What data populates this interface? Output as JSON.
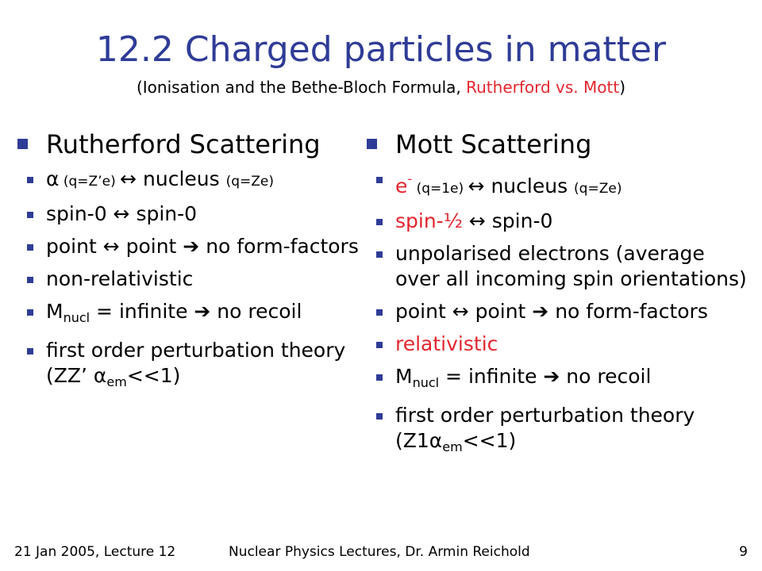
{
  "title": "12.2 Charged particles in matter",
  "subtitle": {
    "open": "(Ionisation and the Bethe-Bloch Formula, ",
    "highlight": "Rutherford vs. Mott",
    "close": ")"
  },
  "left": {
    "heading": "Rutherford Scattering",
    "alpha_item": {
      "alpha": "α",
      "charge1": " (q=Z’e) ",
      "arrow": "↔",
      "nucleus": " nucleus ",
      "charge2": "(q=Ze)"
    },
    "spin_item": "spin-0 ↔ spin-0",
    "point_item": "point ↔ point ➔ no form-factors",
    "nonrel_item": "non-relativistic",
    "mass_item": {
      "m": "M",
      "sub": "nucl",
      "rest": " = infinite ➔ no recoil"
    },
    "pert_item": {
      "pre": "first order perturbation theory (ZZ’ ",
      "alpha": "α",
      "sub": "em",
      "post": "<<1)"
    }
  },
  "right": {
    "heading": "Mott Scattering",
    "e_item": {
      "e": "e",
      "sup": "-",
      "charge1": " (q=1e) ",
      "arrow": "↔",
      "nucleus": " nucleus ",
      "charge2": "(q=Ze)"
    },
    "spin_item": {
      "red": "spin-½",
      "rest": " ↔ spin-0"
    },
    "unpol_item": "unpolarised electrons (average over all incoming spin orientations)",
    "point_item": "point ↔ point ➔ no form-factors",
    "rel_item": "relativistic",
    "mass_item": {
      "m": "M",
      "sub": "nucl",
      "rest": " = infinite ➔ no recoil"
    },
    "pert_item": {
      "pre": "first order perturbation theory (Z1",
      "alpha": "α",
      "sub": "em",
      "post": "<<1)"
    }
  },
  "footer": {
    "left": "21 Jan 2005, Lecture 12",
    "center": "Nuclear Physics Lectures, Dr. Armin Reichold",
    "page": "9"
  },
  "colors": {
    "title": "#2f3c97",
    "bullet": "#2f3c97",
    "highlight": "#e3262e"
  }
}
